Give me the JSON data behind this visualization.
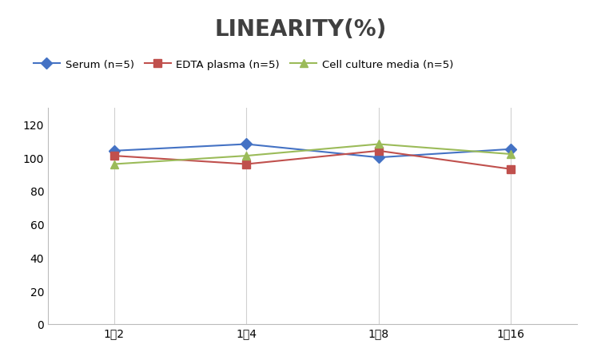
{
  "title": "LINEARITY(%)",
  "title_fontsize": 20,
  "title_fontweight": "bold",
  "title_color": "#404040",
  "x_labels": [
    "1：2",
    "1：4",
    "1：8",
    "1：16"
  ],
  "x_positions": [
    0,
    1,
    2,
    3
  ],
  "series": [
    {
      "label": "Serum (n=5)",
      "values": [
        104,
        108,
        100,
        105
      ],
      "color": "#4472C4",
      "marker": "D",
      "markersize": 7,
      "linewidth": 1.5
    },
    {
      "label": "EDTA plasma (n=5)",
      "values": [
        101,
        96,
        104,
        93
      ],
      "color": "#C0504D",
      "marker": "s",
      "markersize": 7,
      "linewidth": 1.5
    },
    {
      "label": "Cell culture media (n=5)",
      "values": [
        96,
        101,
        108,
        102
      ],
      "color": "#9BBB59",
      "marker": "^",
      "markersize": 7,
      "linewidth": 1.5
    }
  ],
  "ylim": [
    0,
    130
  ],
  "yticks": [
    0,
    20,
    40,
    60,
    80,
    100,
    120
  ],
  "grid_color": "#D0D0D0",
  "background_color": "#FFFFFF",
  "legend_fontsize": 9.5,
  "tick_fontsize": 10
}
